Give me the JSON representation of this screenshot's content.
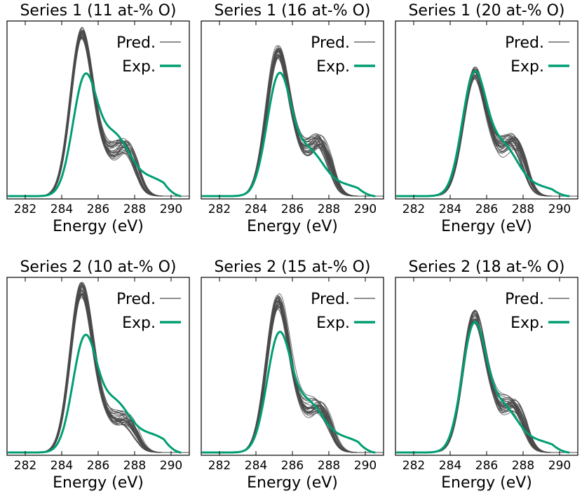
{
  "colors": {
    "pred": "#4a4a4a",
    "exp": "#009e73"
  },
  "chart_data": [
    {
      "type": "line",
      "title": "Series 1 (11 at-% O)",
      "xlabel": "Energy (eV)",
      "xlim": [
        281,
        291
      ],
      "xticks": [
        "282",
        "284",
        "286",
        "288",
        "290"
      ],
      "legend": {
        "position": "top-right",
        "entries": [
          "Pred.",
          "Exp."
        ]
      },
      "series": [
        {
          "name": "Pred.",
          "style": "thin-gray",
          "peak": 1.0,
          "peak_x": 285.1,
          "shoulder": 0.3,
          "spread": 0.04
        },
        {
          "name": "Exp.",
          "style": "thick-green",
          "peak": 0.7,
          "peak_x": 285.25,
          "shoulder": 0.36,
          "tail": 0.1
        }
      ]
    },
    {
      "type": "line",
      "title": "Series 1 (16 at-% O)",
      "xlabel": "Energy (eV)",
      "xlim": [
        281,
        291
      ],
      "xticks": [
        "282",
        "284",
        "286",
        "288",
        "290"
      ],
      "legend": {
        "position": "top-right",
        "entries": [
          "Pred.",
          "Exp."
        ]
      },
      "series": [
        {
          "name": "Pred.",
          "style": "thin-gray",
          "peak": 0.88,
          "peak_x": 285.2,
          "shoulder": 0.33,
          "spread": 0.05
        },
        {
          "name": "Exp.",
          "style": "thick-green",
          "peak": 0.72,
          "peak_x": 285.25,
          "shoulder": 0.27,
          "tail": 0.06
        }
      ]
    },
    {
      "type": "line",
      "title": "Series 1 (20 at-% O)",
      "xlabel": "Energy (eV)",
      "xlim": [
        281,
        291
      ],
      "xticks": [
        "282",
        "284",
        "286",
        "288",
        "290"
      ],
      "legend": {
        "position": "top-right",
        "entries": [
          "Pred.",
          "Exp."
        ]
      },
      "series": [
        {
          "name": "Pred.",
          "style": "thin-gray",
          "peak": 0.74,
          "peak_x": 285.3,
          "shoulder": 0.33,
          "spread": 0.05
        },
        {
          "name": "Exp.",
          "style": "thick-green",
          "peak": 0.72,
          "peak_x": 285.3,
          "shoulder": 0.3,
          "tail": 0.05
        }
      ]
    },
    {
      "type": "line",
      "title": "Series 2 (10 at-% O)",
      "xlabel": "Energy (eV)",
      "xlim": [
        281,
        291
      ],
      "xticks": [
        "282",
        "284",
        "286",
        "288",
        "290"
      ],
      "legend": {
        "position": "top-right",
        "entries": [
          "Pred.",
          "Exp."
        ]
      },
      "series": [
        {
          "name": "Pred.",
          "style": "thin-gray",
          "peak": 1.0,
          "peak_x": 285.1,
          "shoulder": 0.2,
          "spread": 0.05
        },
        {
          "name": "Exp.",
          "style": "thick-green",
          "peak": 0.68,
          "peak_x": 285.25,
          "shoulder": 0.3,
          "tail": 0.1
        }
      ]
    },
    {
      "type": "line",
      "title": "Series 2 (15 at-% O)",
      "xlabel": "Energy (eV)",
      "xlim": [
        281,
        291
      ],
      "xticks": [
        "282",
        "284",
        "286",
        "288",
        "290"
      ],
      "legend": {
        "position": "top-right",
        "entries": [
          "Pred.",
          "Exp."
        ]
      },
      "series": [
        {
          "name": "Pred.",
          "style": "thin-gray",
          "peak": 0.92,
          "peak_x": 285.2,
          "shoulder": 0.27,
          "spread": 0.05
        },
        {
          "name": "Exp.",
          "style": "thick-green",
          "peak": 0.7,
          "peak_x": 285.25,
          "shoulder": 0.29,
          "tail": 0.08
        }
      ]
    },
    {
      "type": "line",
      "title": "Series 2 (18 at-% O)",
      "xlabel": "Energy (eV)",
      "xlim": [
        281,
        291
      ],
      "xticks": [
        "282",
        "284",
        "286",
        "288",
        "290"
      ],
      "legend": {
        "position": "top-right",
        "entries": [
          "Pred.",
          "Exp."
        ]
      },
      "series": [
        {
          "name": "Pred.",
          "style": "thin-gray",
          "peak": 0.82,
          "peak_x": 285.3,
          "shoulder": 0.28,
          "spread": 0.05
        },
        {
          "name": "Exp.",
          "style": "thick-green",
          "peak": 0.76,
          "peak_x": 285.3,
          "shoulder": 0.27,
          "tail": 0.06
        }
      ]
    }
  ]
}
